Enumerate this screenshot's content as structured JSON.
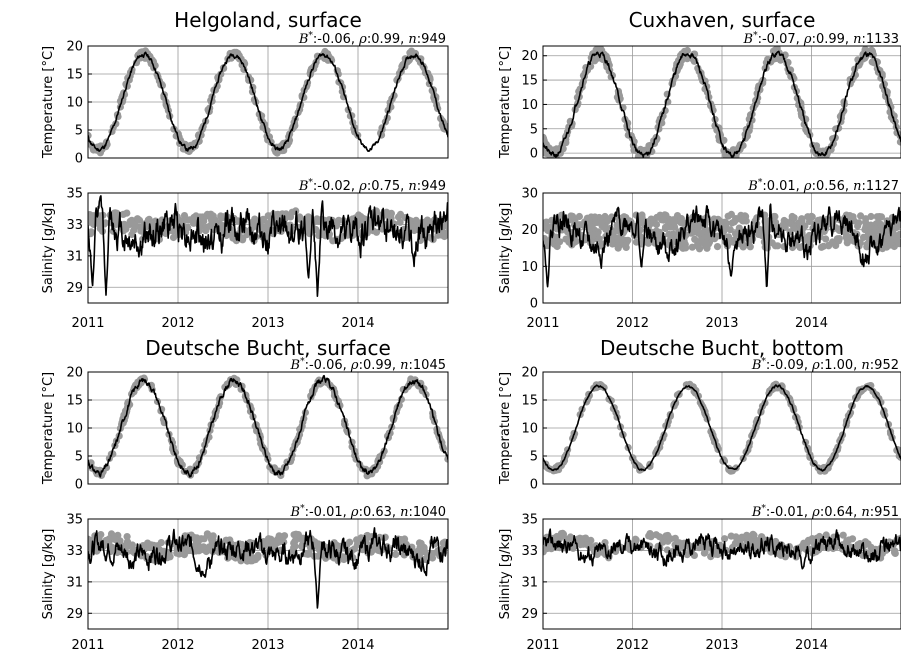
{
  "chart_data": [
    {
      "type": "line",
      "title": "Helgoland, surface",
      "panels": [
        {
          "id": "temp",
          "ylabel": "Temperature [°C]",
          "ylim": [
            0,
            20
          ],
          "yticks": [
            0,
            5,
            10,
            15,
            20
          ],
          "stats": "B*:-0.06, ρ:0.99, n:949",
          "params": {
            "kind": "temp",
            "min": 1.5,
            "max": 18.5,
            "phase": 0.22,
            "noise": 0.6,
            "obsSpread": 0.7,
            "obsCount": 340,
            "seed": 11,
            "gapStart": 2014.0,
            "gapEnd": 2014.25
          }
        },
        {
          "id": "sal",
          "ylabel": "Salinity [g/kg]",
          "ylim": [
            28,
            35
          ],
          "yticks": [
            29,
            31,
            33,
            35
          ],
          "stats": "B*:-0.02, ρ:0.75, n:949",
          "params": {
            "kind": "sal",
            "base": 32.6,
            "amp": 0.6,
            "noise": 0.9,
            "obsBase": 32.9,
            "obsSpread": 0.7,
            "obsCount": 420,
            "seed": 12,
            "dips": [
              [
                2011.05,
                29.0
              ],
              [
                2011.2,
                28.5
              ],
              [
                2013.55,
                28.2
              ],
              [
                2013.45,
                29.5
              ]
            ]
          }
        }
      ],
      "x": {
        "range": [
          2011,
          2015
        ],
        "ticks": [
          2011,
          2012,
          2013,
          2014
        ]
      }
    },
    {
      "type": "line",
      "title": "Cuxhaven, surface",
      "panels": [
        {
          "id": "temp",
          "ylabel": "Temperature [°C]",
          "ylim": [
            -1,
            22
          ],
          "yticks": [
            0,
            5,
            10,
            15,
            20
          ],
          "stats": "B*:-0.07, ρ:0.99, n:1133",
          "params": {
            "kind": "temp",
            "min": -0.5,
            "max": 20.5,
            "phase": 0.22,
            "noise": 0.9,
            "obsSpread": 1.2,
            "obsCount": 420,
            "seed": 21
          }
        },
        {
          "id": "sal",
          "ylabel": "Salinity [g/kg]",
          "ylim": [
            0,
            30
          ],
          "yticks": [
            0,
            10,
            20,
            30
          ],
          "stats": "B*:0.01, ρ:0.56, n:1127",
          "params": {
            "kind": "sal",
            "base": 19,
            "amp": 4,
            "noise": 3.0,
            "obsBase": 19.5,
            "obsSpread": 4.5,
            "obsCount": 600,
            "seed": 22,
            "dips": [
              [
                2011.05,
                4
              ],
              [
                2012.1,
                9
              ],
              [
                2013.1,
                7
              ],
              [
                2013.5,
                3
              ]
            ]
          }
        }
      ],
      "x": {
        "range": [
          2011,
          2015
        ],
        "ticks": [
          2011,
          2012,
          2013,
          2014
        ]
      }
    },
    {
      "type": "line",
      "title": "Deutsche Bucht, surface",
      "panels": [
        {
          "id": "temp",
          "ylabel": "Temperature [°C]",
          "ylim": [
            0,
            20
          ],
          "yticks": [
            0,
            5,
            10,
            15,
            20
          ],
          "stats": "B*:-0.06, ρ:0.99, n:1045",
          "params": {
            "kind": "temp",
            "min": 2.0,
            "max": 18.5,
            "phase": 0.22,
            "noise": 0.8,
            "obsSpread": 0.6,
            "obsCount": 300,
            "seed": 31
          }
        },
        {
          "id": "sal",
          "ylabel": "Salinity [g/kg]",
          "ylim": [
            28,
            35
          ],
          "yticks": [
            29,
            31,
            33,
            35
          ],
          "stats": "B*:-0.01, ρ:0.63, n:1040",
          "params": {
            "kind": "sal",
            "base": 33.0,
            "amp": 0.4,
            "noise": 0.6,
            "obsBase": 33.2,
            "obsSpread": 0.6,
            "obsCount": 360,
            "seed": 32,
            "dips": [
              [
                2013.55,
                29.2
              ],
              [
                2012.3,
                31.2
              ]
            ]
          }
        }
      ],
      "x": {
        "range": [
          2011,
          2015
        ],
        "ticks": [
          2011,
          2012,
          2013,
          2014
        ]
      }
    },
    {
      "type": "line",
      "title": "Deutsche Bucht, bottom",
      "panels": [
        {
          "id": "temp",
          "ylabel": "Temperature [°C]",
          "ylim": [
            0,
            20
          ],
          "yticks": [
            0,
            5,
            10,
            15,
            20
          ],
          "stats": "B*:-0.09, ρ:1.00, n:952",
          "params": {
            "kind": "temp",
            "min": 2.5,
            "max": 17.5,
            "phase": 0.26,
            "noise": 0.3,
            "obsSpread": 0.4,
            "obsCount": 260,
            "seed": 41
          }
        },
        {
          "id": "sal",
          "ylabel": "Salinity [g/kg]",
          "ylim": [
            28,
            35
          ],
          "yticks": [
            29,
            31,
            33,
            35
          ],
          "stats": "B*:-0.01, ρ:0.64, n:951",
          "params": {
            "kind": "sal",
            "base": 33.1,
            "amp": 0.3,
            "noise": 0.5,
            "obsBase": 33.3,
            "obsSpread": 0.5,
            "obsCount": 300,
            "seed": 42,
            "dips": [
              [
                2013.9,
                31.8
              ]
            ]
          }
        }
      ],
      "x": {
        "range": [
          2011,
          2015
        ],
        "ticks": [
          2011,
          2012,
          2013,
          2014
        ]
      }
    }
  ],
  "colors": {
    "model": "#000000",
    "observation": "#999999",
    "grid": "#9a9a9a"
  }
}
